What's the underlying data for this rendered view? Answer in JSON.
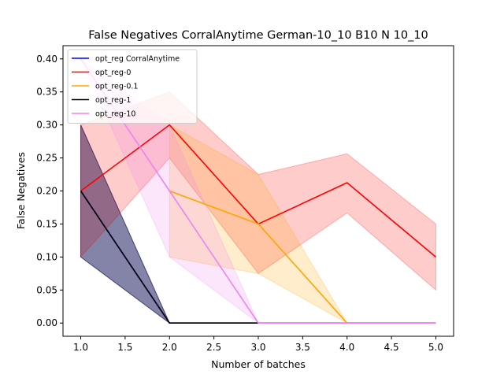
{
  "chart_data": {
    "type": "line",
    "title": "False Negatives CorralAnytime German-10_10 B10 N 10_10",
    "xlabel": "Number of batches",
    "ylabel": "False Negatives",
    "xlim": [
      0.8,
      5.2
    ],
    "ylim": [
      -0.02,
      0.42
    ],
    "xticks": [
      1.0,
      1.5,
      2.0,
      2.5,
      3.0,
      3.5,
      4.0,
      4.5,
      5.0
    ],
    "xtick_labels": [
      "1.0",
      "1.5",
      "2.0",
      "2.5",
      "3.0",
      "3.5",
      "4.0",
      "4.5",
      "5.0"
    ],
    "yticks": [
      0.0,
      0.05,
      0.1,
      0.15,
      0.2,
      0.25,
      0.3,
      0.35,
      0.4
    ],
    "ytick_labels": [
      "0.00",
      "0.05",
      "0.10",
      "0.15",
      "0.20",
      "0.25",
      "0.30",
      "0.35",
      "0.40"
    ],
    "grid": false,
    "legend_position": "top-left",
    "series": [
      {
        "name": "opt_reg CorralAnytime",
        "color": "#0000ff",
        "fill_color": "#00007f",
        "x": [
          1,
          2,
          3,
          4,
          5
        ],
        "y": [
          0.2,
          0.0,
          0.0,
          0.0,
          0.0
        ],
        "lower": [
          0.1,
          0.0,
          0.0,
          0.0,
          0.0
        ],
        "upper": [
          0.3,
          0.0,
          0.0,
          0.0,
          0.0
        ]
      },
      {
        "name": "opt_reg-0",
        "color": "#ff0000",
        "fill_color": "#ff0000",
        "x": [
          1,
          2,
          3,
          4,
          5
        ],
        "y": [
          0.2,
          0.3,
          0.15,
          0.2125,
          0.1
        ],
        "lower": [
          0.1,
          0.25,
          0.075,
          0.1667,
          0.05
        ],
        "upper": [
          0.3,
          0.35,
          0.225,
          0.2563,
          0.15
        ]
      },
      {
        "name": "opt_reg-0.1",
        "color": "#ffa500",
        "fill_color": "#ffa500",
        "x": [
          2,
          3,
          4,
          5
        ],
        "y": [
          0.2,
          0.15,
          0.0,
          0.0
        ],
        "lower": [
          0.1,
          0.075,
          0.0,
          0.0
        ],
        "upper": [
          0.3,
          0.225,
          0.0,
          0.0
        ]
      },
      {
        "name": "opt_reg-1",
        "color": "#000000",
        "fill_color": "#000000",
        "x": [
          1,
          2,
          3
        ],
        "y": [
          0.2,
          0.0,
          0.0
        ],
        "lower": [
          0.1,
          0.0,
          0.0
        ],
        "upper": [
          0.3,
          0.0,
          0.0
        ]
      },
      {
        "name": "opt_reg-10",
        "color": "#ee82ee",
        "fill_color": "#ee82ee",
        "x": [
          1,
          2,
          3,
          4,
          5
        ],
        "y": [
          0.4,
          0.2,
          0.0,
          0.0,
          0.0
        ],
        "lower": [
          0.4,
          0.1,
          0.0,
          0.0,
          0.0
        ],
        "upper": [
          0.4,
          0.3,
          0.0,
          0.0,
          0.0
        ]
      }
    ]
  }
}
